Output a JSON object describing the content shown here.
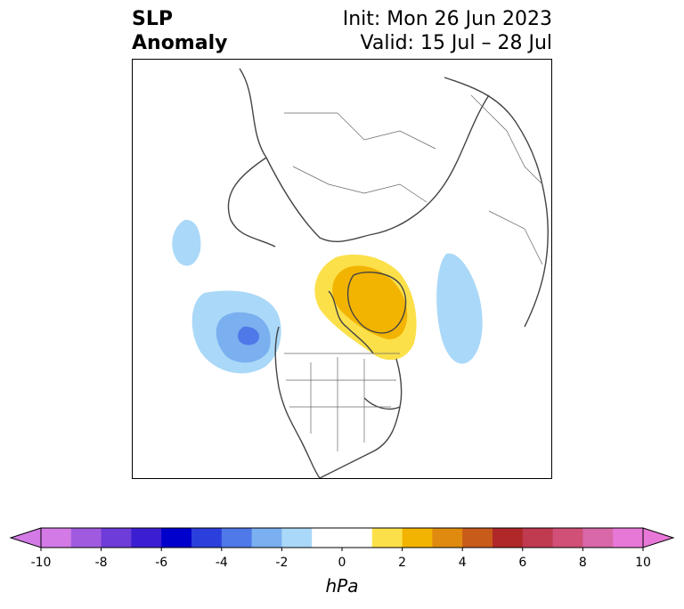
{
  "title": {
    "left_line1": "SLP",
    "left_line2": "Anomaly",
    "right_line1": "Init: Mon 26 Jun 2023",
    "right_line2": "Valid: 15 Jul – 28 Jul"
  },
  "colorbar": {
    "unit": "hPa",
    "ticks": [
      "-10",
      "-8",
      "-6",
      "-4",
      "-2",
      "0",
      "2",
      "4",
      "6",
      "8",
      "10"
    ],
    "colors": [
      "#d37ae6",
      "#a05ae0",
      "#6e3cd8",
      "#3c1ed2",
      "#0000cd",
      "#2a3fdb",
      "#4f78e8",
      "#7aaff0",
      "#aad8f8",
      "#ffffff",
      "#ffffff",
      "#fbe04a",
      "#f2b400",
      "#e08b10",
      "#c85a1a",
      "#b02828",
      "#c03a50",
      "#d05078",
      "#d868a8",
      "#e878d8"
    ]
  },
  "map": {
    "anomaly_colors": {
      "light_blue": "#aad8f8",
      "mid_blue": "#7aaff0",
      "dark_blue": "#4f78e8",
      "light_yellow": "#fbe04a",
      "gold": "#f2b400"
    }
  }
}
